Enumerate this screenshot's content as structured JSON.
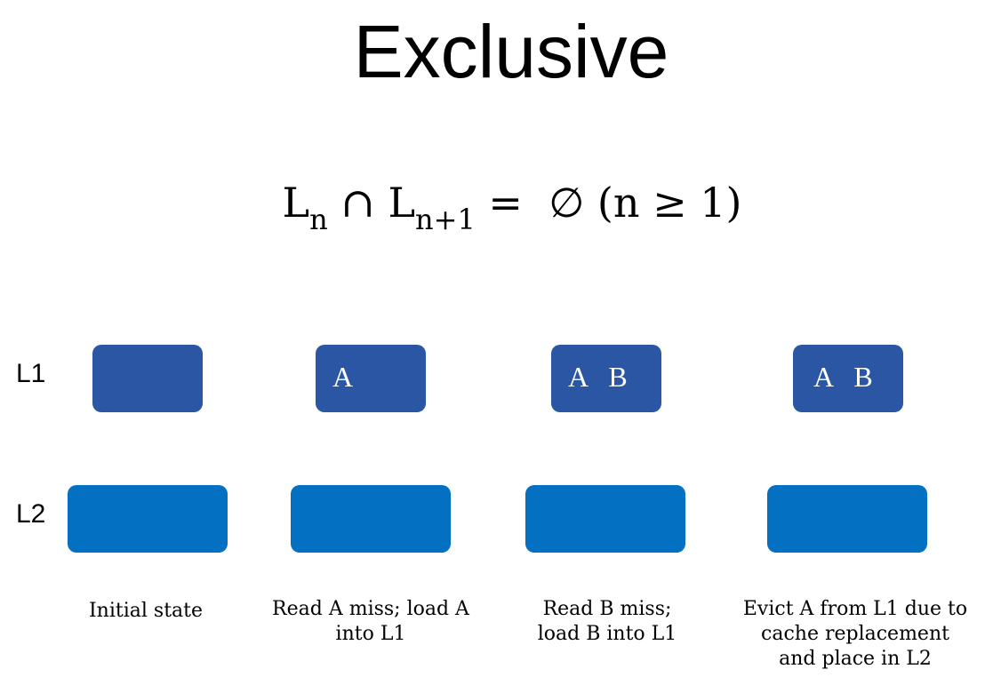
{
  "title": "Exclusive",
  "formula": {
    "l1": "L",
    "sub1": "n",
    "op": "∩",
    "l2": "L",
    "sub2": "n+1",
    "rest": "=  ∅ (n ≥ 1)"
  },
  "rows": {
    "l1_label": "L1",
    "l2_label": "L2"
  },
  "stages": [
    {
      "l1_contents": "",
      "caption": [
        "Initial state"
      ]
    },
    {
      "l1_contents": "A",
      "caption": [
        "Read A miss; load A",
        "into L1"
      ]
    },
    {
      "l1_contents": "A   B",
      "caption": [
        "Read B miss;",
        "load B into L1"
      ]
    },
    {
      "l1_contents": "A   B",
      "caption": [
        "Evict A from L1 due to",
        "cache replacement",
        "and place in L2"
      ]
    }
  ],
  "colors": {
    "l1_box": "#2b56a3",
    "l2_box": "#0470c1",
    "text_on_box": "#ffffff"
  }
}
